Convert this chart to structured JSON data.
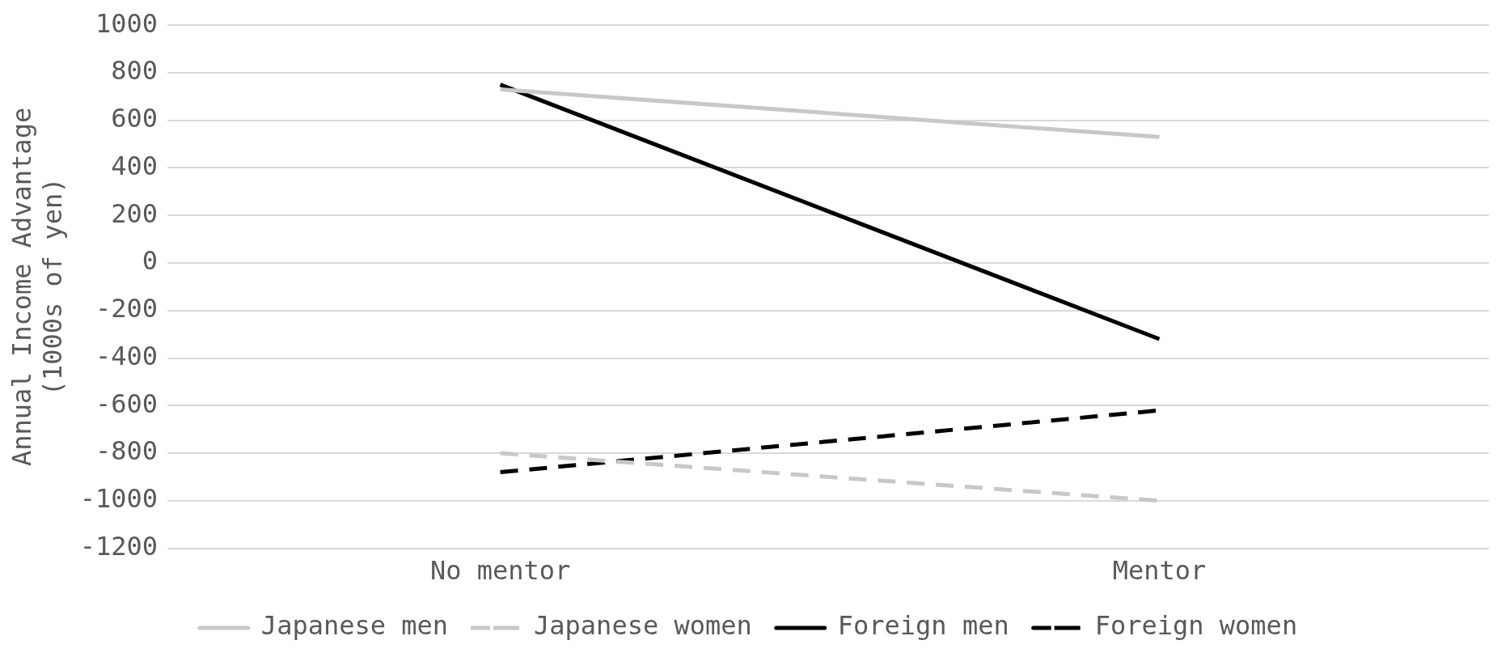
{
  "chart_data": {
    "type": "line",
    "ylabel": "Annual Income Advantage\n(1000s of yen)",
    "categories": [
      "No mentor",
      "Mentor"
    ],
    "series": [
      {
        "name": "Japanese men",
        "color": "#c8c8c8",
        "line_style": "solid",
        "values": [
          730,
          530
        ]
      },
      {
        "name": "Japanese women",
        "color": "#c8c8c8",
        "line_style": "dashed",
        "values": [
          -800,
          -1000
        ]
      },
      {
        "name": "Foreign men",
        "color": "#000000",
        "line_style": "solid",
        "values": [
          750,
          -320
        ]
      },
      {
        "name": "Foreign women",
        "color": "#000000",
        "line_style": "dashed",
        "values": [
          -880,
          -620
        ]
      }
    ],
    "ylim": [
      -1200,
      1000
    ],
    "yticks": [
      -1200,
      -1000,
      -800,
      -600,
      -400,
      -200,
      0,
      200,
      400,
      600,
      800,
      1000
    ],
    "grid": "y",
    "legend": "bottom",
    "marker": "none"
  }
}
